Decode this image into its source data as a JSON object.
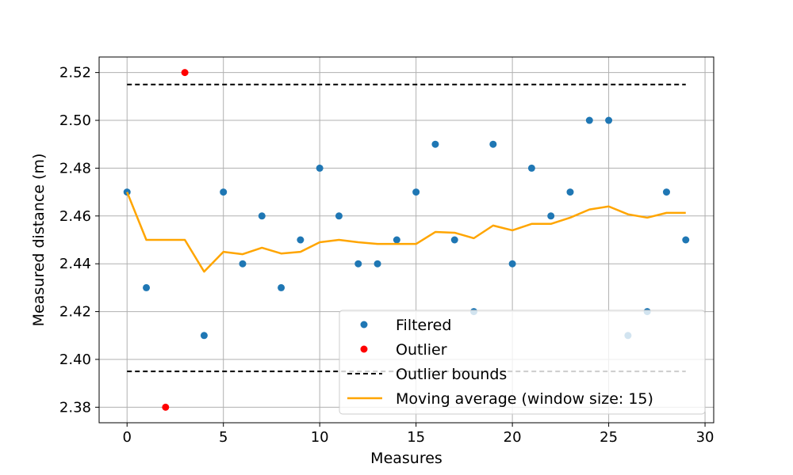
{
  "chart_data": {
    "type": "scatter",
    "title": "",
    "xlabel": "Measures",
    "ylabel": "Measured distance (m)",
    "xlim": [
      -1.45,
      30.45
    ],
    "ylim": [
      2.3735,
      2.5265
    ],
    "xticks": [
      0,
      5,
      10,
      15,
      20,
      25,
      30
    ],
    "xtick_labels": [
      "0",
      "5",
      "10",
      "15",
      "20",
      "25",
      "30"
    ],
    "yticks": [
      2.38,
      2.4,
      2.42,
      2.44,
      2.46,
      2.48,
      2.5,
      2.52
    ],
    "ytick_labels": [
      "2.38",
      "2.40",
      "2.42",
      "2.44",
      "2.46",
      "2.48",
      "2.50",
      "2.52"
    ],
    "grid": true,
    "legend_position": "lower-right",
    "series": [
      {
        "name": "Filtered",
        "kind": "scatter",
        "color": "#1f77b4",
        "points": [
          [
            0,
            2.47
          ],
          [
            1,
            2.43
          ],
          [
            4,
            2.41
          ],
          [
            5,
            2.47
          ],
          [
            6,
            2.44
          ],
          [
            7,
            2.46
          ],
          [
            8,
            2.43
          ],
          [
            9,
            2.45
          ],
          [
            10,
            2.48
          ],
          [
            11,
            2.46
          ],
          [
            12,
            2.44
          ],
          [
            13,
            2.44
          ],
          [
            14,
            2.45
          ],
          [
            15,
            2.47
          ],
          [
            16,
            2.49
          ],
          [
            17,
            2.45
          ],
          [
            18,
            2.42
          ],
          [
            19,
            2.49
          ],
          [
            20,
            2.44
          ],
          [
            21,
            2.48
          ],
          [
            22,
            2.46
          ],
          [
            23,
            2.47
          ],
          [
            24,
            2.5
          ],
          [
            25,
            2.5
          ],
          [
            26,
            2.41
          ],
          [
            27,
            2.42
          ],
          [
            28,
            2.47
          ],
          [
            29,
            2.45
          ]
        ]
      },
      {
        "name": "Outlier",
        "kind": "scatter",
        "color": "#ff0000",
        "points": [
          [
            2,
            2.38
          ],
          [
            3,
            2.52
          ]
        ]
      },
      {
        "name": "Outlier bounds",
        "kind": "dashed-line",
        "color": "#000000",
        "lines": [
          [
            [
              0,
              2.515
            ],
            [
              29,
              2.515
            ]
          ],
          [
            [
              0,
              2.395
            ],
            [
              29,
              2.395
            ]
          ]
        ]
      },
      {
        "name": "Moving average (window size: 15)",
        "kind": "line",
        "color": "#ffa500",
        "points": [
          [
            0,
            2.47
          ],
          [
            1,
            2.45
          ],
          [
            2,
            2.45
          ],
          [
            3,
            2.45
          ],
          [
            4,
            2.4367
          ],
          [
            5,
            2.445
          ],
          [
            6,
            2.444
          ],
          [
            7,
            2.4467
          ],
          [
            8,
            2.4443
          ],
          [
            9,
            2.445
          ],
          [
            10,
            2.449
          ],
          [
            11,
            2.45
          ],
          [
            12,
            2.449
          ],
          [
            13,
            2.4483
          ],
          [
            14,
            2.4483
          ],
          [
            15,
            2.4483
          ],
          [
            16,
            2.4533
          ],
          [
            17,
            2.453
          ],
          [
            18,
            2.4507
          ],
          [
            19,
            2.456
          ],
          [
            20,
            2.454
          ],
          [
            21,
            2.4567
          ],
          [
            22,
            2.4567
          ],
          [
            23,
            2.4593
          ],
          [
            24,
            2.4627
          ],
          [
            25,
            2.464
          ],
          [
            26,
            2.4607
          ],
          [
            27,
            2.4593
          ],
          [
            28,
            2.4613
          ],
          [
            29,
            2.4613
          ]
        ]
      }
    ]
  }
}
